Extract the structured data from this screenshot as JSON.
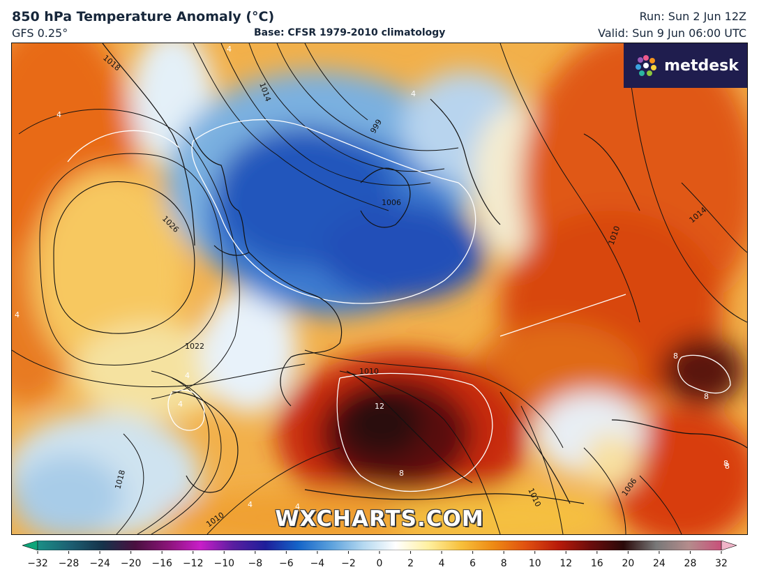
{
  "header": {
    "title": "850 hPa Temperature Anomaly (°C)",
    "model": "GFS 0.25°",
    "base": "Base: CFSR 1979-2010 climatology",
    "run": "Run: Sun 2 Jun 12Z",
    "valid": "Valid: Sun 9 Jun 06:00 UTC"
  },
  "logo": {
    "text": "metdesk",
    "icon": "flower-logo-icon"
  },
  "watermark": "WXCHARTS.COM",
  "isobar_labels": [
    "1018",
    "1014",
    "999",
    "1006",
    "1026",
    "1022",
    "1010",
    "1010",
    "1014",
    "1018",
    "1010",
    "1010",
    "1006"
  ],
  "anomaly_labels": [
    "4",
    "4",
    "4",
    "4",
    "4",
    "4",
    "4",
    "8",
    "8",
    "8",
    "12",
    "4",
    "8",
    "8"
  ],
  "colorbar": {
    "ticks": [
      "−32",
      "−28",
      "−24",
      "−20",
      "−16",
      "−12",
      "−10",
      "−8",
      "−6",
      "−4",
      "−2",
      "0",
      "2",
      "4",
      "6",
      "8",
      "10",
      "12",
      "16",
      "20",
      "24",
      "28",
      "32"
    ],
    "colors": [
      "#0ea57a",
      "#1a8f86",
      "#1c5f72",
      "#16324a",
      "#4a1040",
      "#8a1478",
      "#c81ec8",
      "#5a1ea0",
      "#1e1e9a",
      "#1464c8",
      "#5aa0dc",
      "#b4d8f0",
      "#ffffff",
      "#fff0a0",
      "#f7c03c",
      "#ee8a14",
      "#e05010",
      "#b81a0a",
      "#6a0c0c",
      "#2a0a0a",
      "#787878",
      "#b48c8c",
      "#c8507a",
      "#f0b4c8"
    ]
  },
  "colors": {
    "ocean_warm": "#e89a30",
    "cold_core": "#1e50b4",
    "hot_core": "#2a0808",
    "header_text": "#16263a",
    "logo_bg": "#1f1d4e"
  }
}
